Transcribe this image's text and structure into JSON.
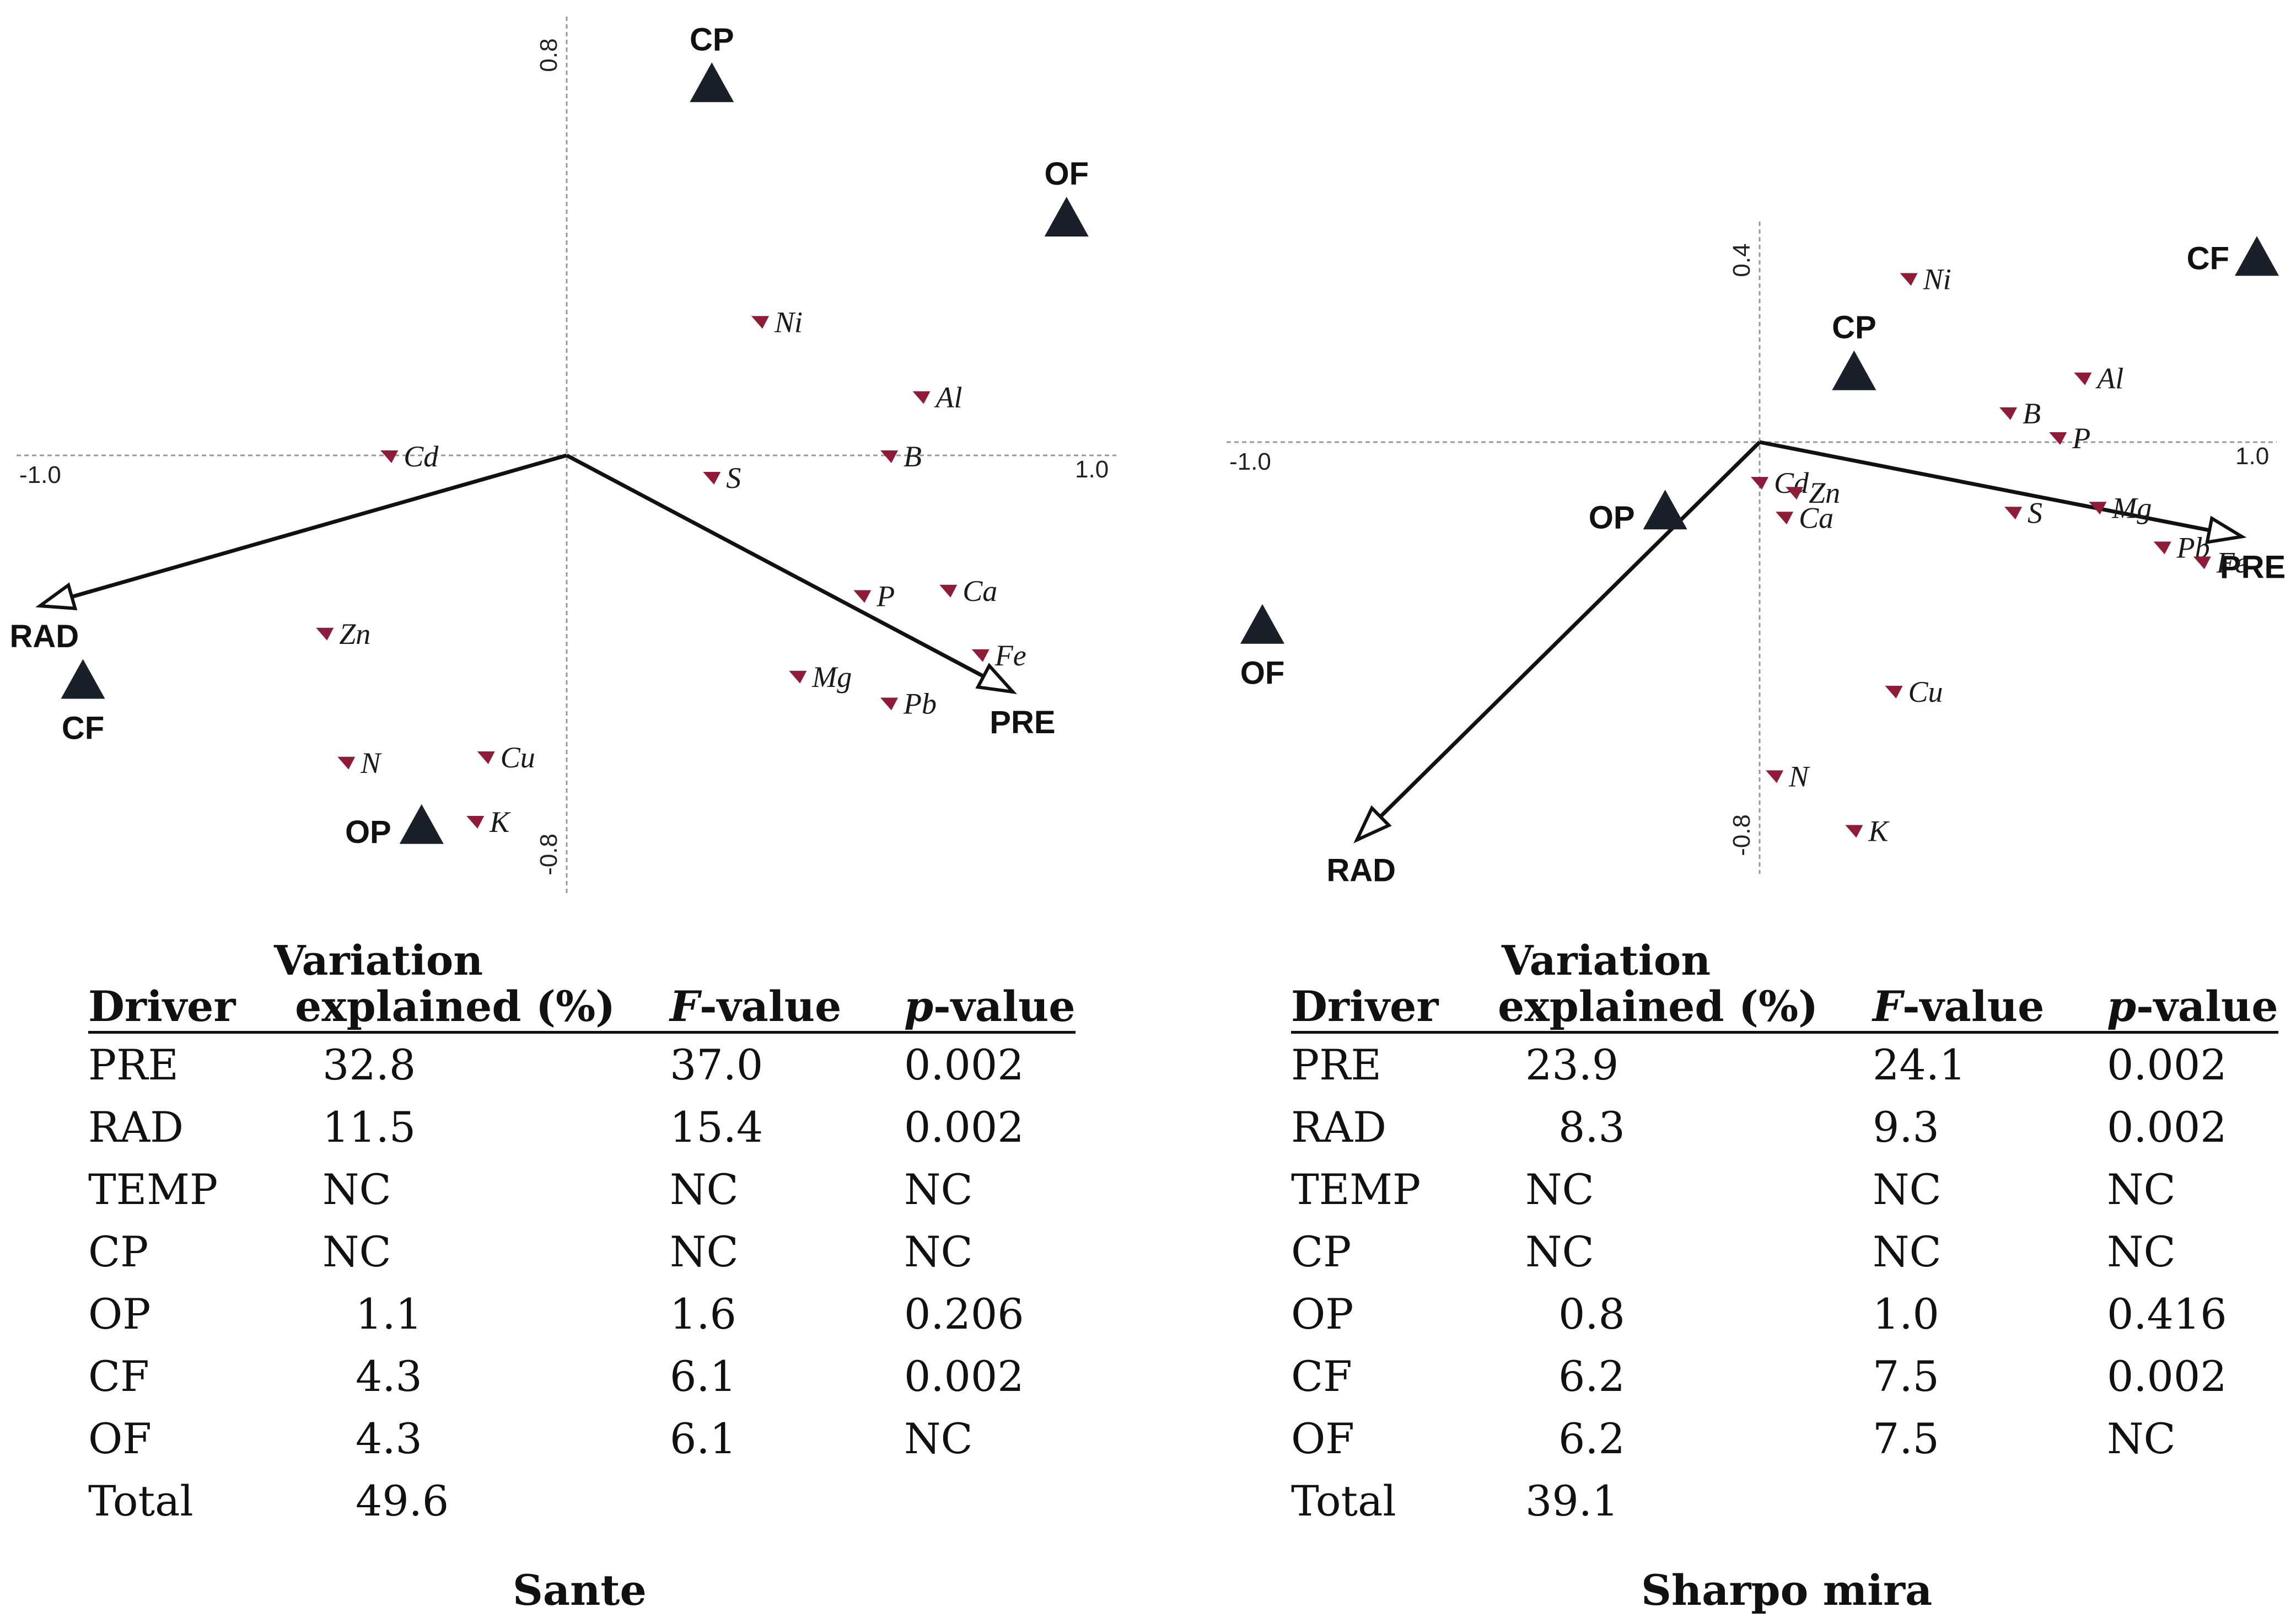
{
  "colors": {
    "species": "#8e1b38",
    "factor": "#1b1f2a",
    "axis": "#999999",
    "arrow": "#111111"
  },
  "chart_data": [
    {
      "type": "scatter",
      "panel": "Sante",
      "title": "Sante",
      "xlim": [
        -1.0,
        1.0
      ],
      "ylim": [
        -0.8,
        0.8
      ],
      "x_tick_labels": [
        "-1.0",
        "1.0"
      ],
      "y_tick_labels": [
        "0.8",
        "-0.8"
      ],
      "explanatory_arrows": [
        {
          "label": "PRE",
          "x": 0.83,
          "y": -0.44
        },
        {
          "label": "RAD",
          "x": -0.98,
          "y": -0.28
        }
      ],
      "nominal_factors": [
        {
          "label": "CP",
          "x": 0.27,
          "y": 0.69
        },
        {
          "label": "OF",
          "x": 0.93,
          "y": 0.44
        },
        {
          "label": "CF",
          "x": -0.9,
          "y": -0.42
        },
        {
          "label": "OP",
          "x": -0.27,
          "y": -0.69
        }
      ],
      "species": [
        {
          "label": "Ni",
          "x": 0.36,
          "y": 0.25
        },
        {
          "label": "Al",
          "x": 0.66,
          "y": 0.11
        },
        {
          "label": "Cd",
          "x": -0.33,
          "y": 0.0
        },
        {
          "label": "S",
          "x": 0.27,
          "y": -0.04
        },
        {
          "label": "B",
          "x": 0.6,
          "y": 0.0
        },
        {
          "label": "P",
          "x": 0.55,
          "y": -0.26
        },
        {
          "label": "Ca",
          "x": 0.71,
          "y": -0.25
        },
        {
          "label": "Zn",
          "x": -0.45,
          "y": -0.33
        },
        {
          "label": "Fe",
          "x": 0.77,
          "y": -0.37
        },
        {
          "label": "Mg",
          "x": 0.43,
          "y": -0.41
        },
        {
          "label": "Pb",
          "x": 0.6,
          "y": -0.46
        },
        {
          "label": "N",
          "x": -0.41,
          "y": -0.57
        },
        {
          "label": "Cu",
          "x": -0.15,
          "y": -0.56
        },
        {
          "label": "K",
          "x": -0.17,
          "y": -0.68
        }
      ]
    },
    {
      "type": "scatter",
      "panel": "Sharpo mira",
      "title": "Sharpo mira",
      "xlim": [
        -1.0,
        1.0
      ],
      "ylim": [
        -0.8,
        0.4
      ],
      "x_tick_labels": [
        "-1.0",
        "1.0"
      ],
      "y_tick_labels": [
        "0.4",
        "-0.8"
      ],
      "explanatory_arrows": [
        {
          "label": "PRE",
          "x": 0.97,
          "y": -0.19
        },
        {
          "label": "RAD",
          "x": -0.81,
          "y": -0.8
        }
      ],
      "nominal_factors": [
        {
          "label": "CF",
          "x": 1.0,
          "y": 0.37
        },
        {
          "label": "CP",
          "x": 0.19,
          "y": 0.14
        },
        {
          "label": "OP",
          "x": -0.19,
          "y": -0.14
        },
        {
          "label": "OF",
          "x": -1.0,
          "y": -0.37
        }
      ],
      "species": [
        {
          "label": "Ni",
          "x": 0.3,
          "y": 0.33
        },
        {
          "label": "Al",
          "x": 0.65,
          "y": 0.13
        },
        {
          "label": "B",
          "x": 0.5,
          "y": 0.06
        },
        {
          "label": "P",
          "x": 0.6,
          "y": 0.01
        },
        {
          "label": "Cd",
          "x": 0.0,
          "y": -0.08
        },
        {
          "label": "Zn",
          "x": 0.07,
          "y": -0.1
        },
        {
          "label": "Ca",
          "x": 0.05,
          "y": -0.15
        },
        {
          "label": "S",
          "x": 0.51,
          "y": -0.14
        },
        {
          "label": "Mg",
          "x": 0.68,
          "y": -0.13
        },
        {
          "label": "Pb",
          "x": 0.81,
          "y": -0.21
        },
        {
          "label": "Fe",
          "x": 0.89,
          "y": -0.24
        },
        {
          "label": "Cu",
          "x": 0.27,
          "y": -0.5
        },
        {
          "label": "N",
          "x": 0.03,
          "y": -0.67
        },
        {
          "label": "K",
          "x": 0.19,
          "y": -0.78
        }
      ]
    }
  ],
  "tables": [
    {
      "caption_top": "Variation",
      "headers": {
        "driver": "Driver",
        "explained": "explained (%)",
        "f_italic": "F",
        "f_rest": "-value",
        "p_italic": "p",
        "p_rest": "-value"
      },
      "rows": [
        {
          "driver": "PRE",
          "explained": "32.8",
          "f": "37.0",
          "p": "0.002"
        },
        {
          "driver": "RAD",
          "explained": "11.5",
          "f": "15.4",
          "p": "0.002"
        },
        {
          "driver": "TEMP",
          "explained": "NC",
          "f": "NC",
          "p": "NC"
        },
        {
          "driver": "CP",
          "explained": "NC",
          "f": "NC",
          "p": "NC"
        },
        {
          "driver": "OP",
          "explained": "1.1",
          "f": "1.6",
          "p": "0.206"
        },
        {
          "driver": "CF",
          "explained": "4.3",
          "f": "6.1",
          "p": "0.002"
        },
        {
          "driver": "OF",
          "explained": "4.3",
          "f": "6.1",
          "p": "NC"
        }
      ],
      "total_label": "Total",
      "total_value": "49.6",
      "site": "Sante"
    },
    {
      "caption_top": "Variation",
      "headers": {
        "driver": "Driver",
        "explained": "explained (%)",
        "f_italic": "F",
        "f_rest": "-value",
        "p_italic": "p",
        "p_rest": "-value"
      },
      "rows": [
        {
          "driver": "PRE",
          "explained": "23.9",
          "f": "24.1",
          "p": "0.002"
        },
        {
          "driver": "RAD",
          "explained": "8.3",
          "f": "9.3",
          "p": "0.002"
        },
        {
          "driver": "TEMP",
          "explained": "NC",
          "f": "NC",
          "p": "NC"
        },
        {
          "driver": "CP",
          "explained": "NC",
          "f": "NC",
          "p": "NC"
        },
        {
          "driver": "OP",
          "explained": "0.8",
          "f": "1.0",
          "p": "0.416"
        },
        {
          "driver": "CF",
          "explained": "6.2",
          "f": "7.5",
          "p": "0.002"
        },
        {
          "driver": "OF",
          "explained": "6.2",
          "f": "7.5",
          "p": "NC"
        }
      ],
      "total_label": "Total",
      "total_value": "39.1",
      "site": "Sharpo mira"
    }
  ]
}
